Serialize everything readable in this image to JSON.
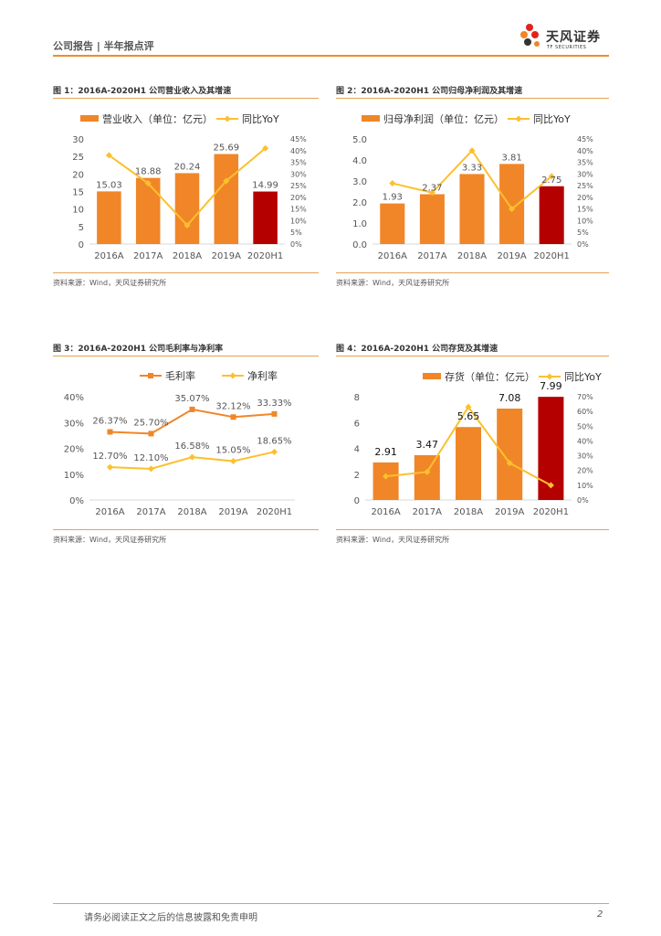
{
  "header": {
    "title": "公司报告 | 半年报点评",
    "logo_cn": "天风证券",
    "logo_en": "TF SECURITIES"
  },
  "colors": {
    "orange": "#f08628",
    "dark_red": "#b50000",
    "gold": "#fcc02e"
  },
  "chart_data": [
    {
      "type": "bar+line",
      "title": "图 1：2016A-2020H1 公司营业收入及其增速",
      "categories": [
        "2016A",
        "2017A",
        "2018A",
        "2019A",
        "2020H1"
      ],
      "bar": {
        "name": "营业收入（单位：亿元）",
        "values": [
          15.03,
          18.88,
          20.24,
          25.69,
          14.99
        ],
        "labels": [
          "15.03",
          "18.88",
          "20.24",
          "25.69",
          "14.99"
        ]
      },
      "line": {
        "name": "同比YoY",
        "values": [
          38,
          26,
          8,
          27,
          41
        ]
      },
      "y_left": {
        "min": 0,
        "max": 30,
        "ticks": [
          "0",
          "5",
          "10",
          "15",
          "20",
          "25",
          "30"
        ]
      },
      "y_right": {
        "min": 0,
        "max": 45,
        "ticks": [
          "0%",
          "5%",
          "10%",
          "15%",
          "20%",
          "25%",
          "30%",
          "35%",
          "40%",
          "45%"
        ]
      },
      "source": "资料来源：Wind，天风证券研究所"
    },
    {
      "type": "bar+line",
      "title": "图 2：2016A-2020H1 公司归母净利润及其增速",
      "categories": [
        "2016A",
        "2017A",
        "2018A",
        "2019A",
        "2020H1"
      ],
      "bar": {
        "name": "归母净利润（单位：亿元）",
        "values": [
          1.93,
          2.37,
          3.33,
          3.81,
          2.75
        ],
        "labels": [
          "1.93",
          "2.37",
          "3.33",
          "3.81",
          "2.75"
        ]
      },
      "line": {
        "name": "同比YoY",
        "values": [
          26,
          22,
          40,
          15,
          29
        ]
      },
      "y_left": {
        "min": 0,
        "max": 5,
        "ticks": [
          "0.0",
          "1.0",
          "2.0",
          "3.0",
          "4.0",
          "5.0"
        ]
      },
      "y_right": {
        "min": 0,
        "max": 45,
        "ticks": [
          "0%",
          "5%",
          "10%",
          "15%",
          "20%",
          "25%",
          "30%",
          "35%",
          "40%",
          "45%"
        ]
      },
      "source": "资料来源：Wind，天风证券研究所"
    },
    {
      "type": "line",
      "title": "图 3：2016A-2020H1 公司毛利率与净利率",
      "categories": [
        "2016A",
        "2017A",
        "2018A",
        "2019A",
        "2020H1"
      ],
      "series": [
        {
          "name": "毛利率",
          "values": [
            26.37,
            25.7,
            35.07,
            32.12,
            33.33
          ],
          "labels": [
            "26.37%",
            "25.70%",
            "35.07%",
            "32.12%",
            "33.33%"
          ]
        },
        {
          "name": "净利率",
          "values": [
            12.7,
            12.1,
            16.58,
            15.05,
            18.65
          ],
          "labels": [
            "12.70%",
            "12.10%",
            "16.58%",
            "15.05%",
            "18.65%"
          ]
        }
      ],
      "y_left": {
        "min": 0,
        "max": 40,
        "ticks": [
          "0%",
          "10%",
          "20%",
          "30%",
          "40%"
        ]
      },
      "source": "资料来源：Wind，天风证券研究所"
    },
    {
      "type": "bar+line",
      "title": "图 4：2016A-2020H1 公司存货及其增速",
      "categories": [
        "2016A",
        "2017A",
        "2018A",
        "2019A",
        "2020H1"
      ],
      "bar": {
        "name": "存货（单位：亿元）",
        "values": [
          2.91,
          3.47,
          5.65,
          7.08,
          7.99
        ],
        "labels": [
          "2.91",
          "3.47",
          "5.65",
          "7.08",
          "7.99"
        ]
      },
      "line": {
        "name": "同比YoY",
        "values": [
          16,
          19,
          63,
          25,
          10
        ]
      },
      "y_left": {
        "min": 0,
        "max": 8,
        "ticks": [
          "0",
          "2",
          "4",
          "6",
          "8"
        ]
      },
      "y_right": {
        "min": 0,
        "max": 70,
        "ticks": [
          "0%",
          "10%",
          "20%",
          "30%",
          "40%",
          "50%",
          "60%",
          "70%"
        ]
      },
      "source": "资料来源：Wind，天风证券研究所"
    }
  ],
  "footer": {
    "disclaimer": "请务必阅读正文之后的信息披露和免责申明",
    "page": "2"
  }
}
